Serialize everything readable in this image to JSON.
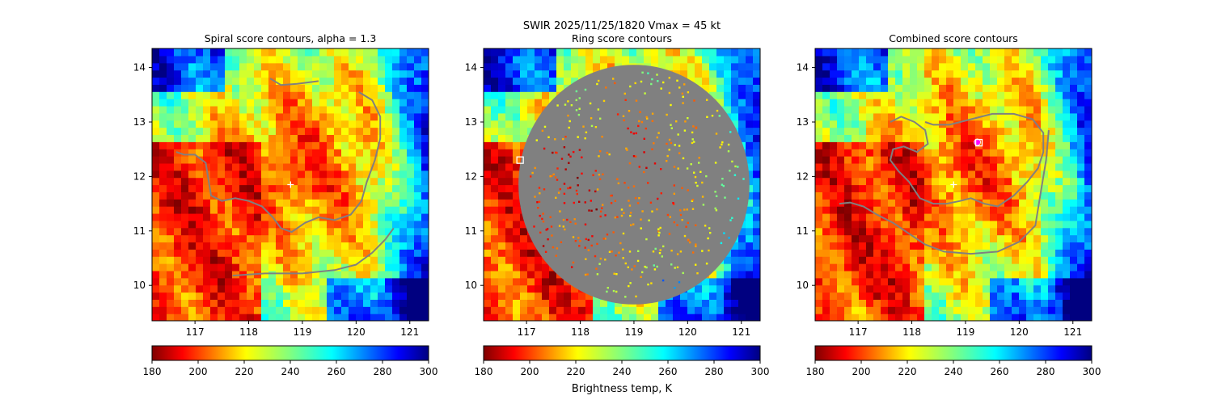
{
  "figure": {
    "suptitle_line1": "SWIR  2025/11/25/1820    Vmax = 45 kt",
    "colorbar_label": "Brightness temp, K"
  },
  "chart_data": [
    {
      "type": "heatmap",
      "title": "Spiral score contours, alpha =  1.3",
      "x_ticks": [
        "117",
        "118",
        "119",
        "120",
        "121"
      ],
      "y_ticks": [
        "10",
        "11",
        "12",
        "13",
        "14"
      ],
      "xlim": [
        116.2,
        121.35
      ],
      "ylim": [
        9.35,
        14.35
      ],
      "colorbar": {
        "ticks": [
          "180",
          "200",
          "220",
          "240",
          "260",
          "280",
          "300"
        ],
        "range": [
          180,
          300
        ],
        "colormap": "jet_r"
      },
      "center_marker": {
        "lon": 118.78,
        "lat": 11.85,
        "symbol": "+"
      },
      "contours": [
        [
          [
            118.4,
            13.8
          ],
          [
            118.6,
            13.68
          ],
          [
            118.9,
            13.7
          ],
          [
            119.3,
            13.75
          ]
        ],
        [
          [
            120.05,
            13.55
          ],
          [
            120.3,
            13.4
          ],
          [
            120.45,
            13.1
          ],
          [
            120.45,
            12.7
          ],
          [
            120.35,
            12.3
          ],
          [
            120.2,
            11.9
          ],
          [
            120.1,
            11.55
          ],
          [
            119.9,
            11.3
          ],
          [
            119.6,
            11.2
          ],
          [
            119.3,
            11.25
          ],
          [
            119.05,
            11.15
          ],
          [
            118.8,
            10.98
          ],
          [
            118.6,
            11.05
          ],
          [
            118.45,
            11.25
          ],
          [
            118.25,
            11.45
          ],
          [
            118.0,
            11.55
          ],
          [
            117.75,
            11.6
          ],
          [
            117.5,
            11.55
          ],
          [
            117.3,
            11.65
          ],
          [
            117.25,
            11.95
          ],
          [
            117.2,
            12.25
          ],
          [
            117.0,
            12.4
          ],
          [
            116.8,
            12.4
          ],
          [
            116.65,
            12.45
          ]
        ],
        [
          [
            117.7,
            10.18
          ],
          [
            118.3,
            10.22
          ],
          [
            119.0,
            10.22
          ],
          [
            119.6,
            10.28
          ],
          [
            120.0,
            10.38
          ],
          [
            120.3,
            10.6
          ],
          [
            120.55,
            10.85
          ],
          [
            120.7,
            11.05
          ]
        ]
      ]
    },
    {
      "type": "heatmap",
      "title": "Ring score contours",
      "x_ticks": [
        "117",
        "118",
        "119",
        "120",
        "121"
      ],
      "y_ticks": [
        "10",
        "11",
        "12",
        "13",
        "14"
      ],
      "xlim": [
        116.2,
        121.35
      ],
      "ylim": [
        9.35,
        14.35
      ],
      "colorbar": {
        "ticks": [
          "180",
          "200",
          "220",
          "240",
          "260",
          "280",
          "300"
        ],
        "range": [
          180,
          300
        ],
        "colormap": "jet_r"
      },
      "square_marker": {
        "lon": 116.88,
        "lat": 12.3,
        "symbol": "square"
      },
      "ring_region": {
        "center_lon": 119.0,
        "center_lat": 11.85,
        "radius_lon": 2.15,
        "radius_lat": 2.2
      }
    },
    {
      "type": "heatmap",
      "title": "Combined score contours",
      "x_ticks": [
        "117",
        "118",
        "119",
        "120",
        "121"
      ],
      "y_ticks": [
        "10",
        "11",
        "12",
        "13",
        "14"
      ],
      "xlim": [
        116.2,
        121.35
      ],
      "ylim": [
        9.35,
        14.35
      ],
      "colorbar": {
        "ticks": [
          "180",
          "200",
          "220",
          "240",
          "260",
          "280",
          "300"
        ],
        "range": [
          180,
          300
        ],
        "colormap": "jet_r"
      },
      "center_marker": {
        "lon": 118.78,
        "lat": 11.85,
        "symbol": "+"
      },
      "square_marker": {
        "lon": 119.25,
        "lat": 12.62,
        "symbol": "square"
      },
      "circle_marker": {
        "lon": 119.22,
        "lat": 12.63,
        "symbol": "circle"
      },
      "contours": [
        [
          [
            117.6,
            13.0
          ],
          [
            117.8,
            13.1
          ],
          [
            118.05,
            13.0
          ],
          [
            118.25,
            12.85
          ],
          [
            118.3,
            12.6
          ],
          [
            118.1,
            12.45
          ],
          [
            117.85,
            12.55
          ],
          [
            117.65,
            12.5
          ],
          [
            117.6,
            12.3
          ],
          [
            117.75,
            12.1
          ],
          [
            117.95,
            11.9
          ],
          [
            118.15,
            11.6
          ],
          [
            118.4,
            11.5
          ],
          [
            118.65,
            11.5
          ],
          [
            118.9,
            11.55
          ],
          [
            119.1,
            11.6
          ],
          [
            119.35,
            11.5
          ],
          [
            119.6,
            11.45
          ],
          [
            119.9,
            11.65
          ],
          [
            120.15,
            11.9
          ],
          [
            120.35,
            12.15
          ],
          [
            120.45,
            12.45
          ],
          [
            120.45,
            12.8
          ],
          [
            120.25,
            13.05
          ],
          [
            119.9,
            13.15
          ],
          [
            119.5,
            13.15
          ],
          [
            119.1,
            13.05
          ],
          [
            118.7,
            12.95
          ],
          [
            118.4,
            12.95
          ],
          [
            118.25,
            13.0
          ]
        ],
        [
          [
            120.55,
            12.85
          ],
          [
            120.5,
            12.3
          ],
          [
            120.4,
            11.7
          ],
          [
            120.3,
            11.1
          ],
          [
            120.0,
            10.8
          ],
          [
            119.6,
            10.62
          ],
          [
            119.1,
            10.58
          ],
          [
            118.6,
            10.62
          ],
          [
            118.25,
            10.75
          ],
          [
            117.95,
            10.95
          ],
          [
            117.65,
            11.15
          ],
          [
            117.35,
            11.3
          ],
          [
            117.1,
            11.45
          ],
          [
            116.85,
            11.52
          ],
          [
            116.65,
            11.5
          ]
        ]
      ]
    }
  ]
}
